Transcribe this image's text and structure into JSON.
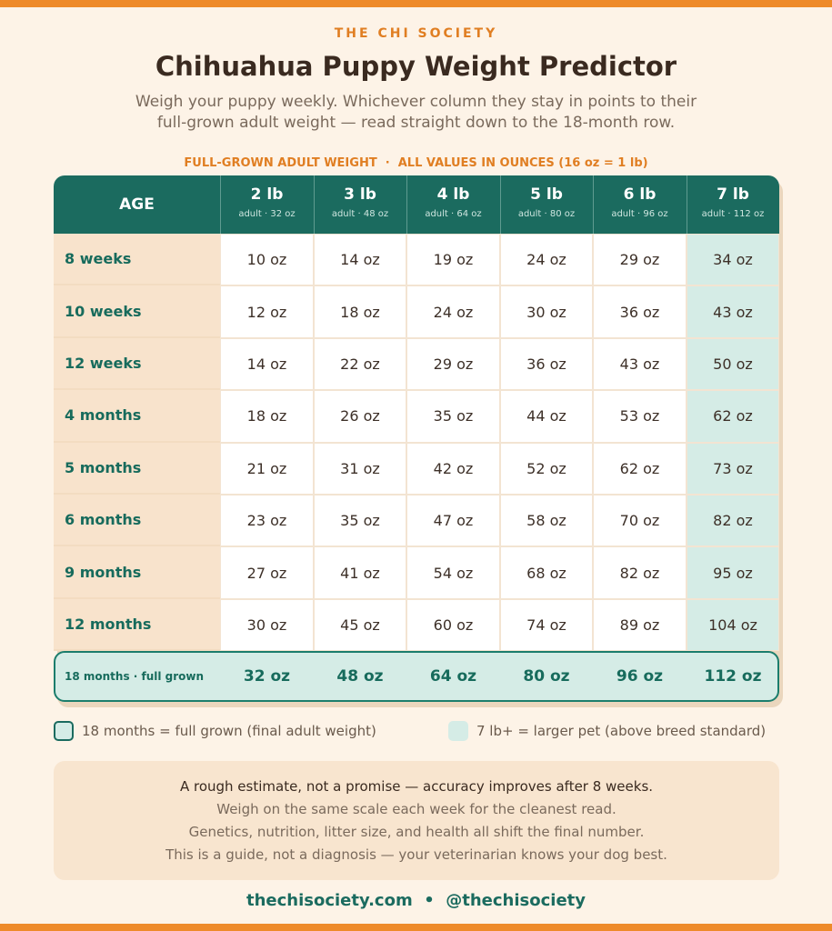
{
  "header": {
    "brand": "THE CHI SOCIETY",
    "title": "Chihuahua Puppy Weight Predictor",
    "subtitle": [
      "Weigh your puppy weekly. Whichever column they stay in points to their",
      "full-grown adult weight — read straight down to the 18-month row."
    ]
  },
  "table": {
    "caption": "FULL-GROWN ADULT WEIGHT  ·  ALL VALUES IN OUNCES (16 oz = 1 lb)",
    "age_header": "AGE",
    "columns": [
      {
        "label": "2 lb",
        "sub": "adult · 32 oz"
      },
      {
        "label": "3 lb",
        "sub": "adult · 48 oz"
      },
      {
        "label": "4 lb",
        "sub": "adult · 64 oz"
      },
      {
        "label": "5 lb",
        "sub": "adult · 80 oz"
      },
      {
        "label": "6 lb",
        "sub": "adult · 96 oz"
      },
      {
        "label": "7 lb",
        "sub": "adult · 112 oz"
      }
    ],
    "rows": [
      {
        "age": "8 weeks",
        "cells": [
          "10 oz",
          "14 oz",
          "19 oz",
          "24 oz",
          "29 oz",
          "34 oz"
        ]
      },
      {
        "age": "10 weeks",
        "cells": [
          "12 oz",
          "18 oz",
          "24 oz",
          "30 oz",
          "36 oz",
          "43 oz"
        ]
      },
      {
        "age": "12 weeks",
        "cells": [
          "14 oz",
          "22 oz",
          "29 oz",
          "36 oz",
          "43 oz",
          "50 oz"
        ]
      },
      {
        "age": "4 months",
        "cells": [
          "18 oz",
          "26 oz",
          "35 oz",
          "44 oz",
          "53 oz",
          "62 oz"
        ]
      },
      {
        "age": "5 months",
        "cells": [
          "21 oz",
          "31 oz",
          "42 oz",
          "52 oz",
          "62 oz",
          "73 oz"
        ]
      },
      {
        "age": "6 months",
        "cells": [
          "23 oz",
          "35 oz",
          "47 oz",
          "58 oz",
          "70 oz",
          "82 oz"
        ]
      },
      {
        "age": "9 months",
        "cells": [
          "27 oz",
          "41 oz",
          "54 oz",
          "68 oz",
          "82 oz",
          "95 oz"
        ]
      },
      {
        "age": "12 months",
        "cells": [
          "30 oz",
          "45 oz",
          "60 oz",
          "74 oz",
          "89 oz",
          "104 oz"
        ]
      }
    ],
    "final_row": {
      "age": "18 months · full grown",
      "cells": [
        "32 oz",
        "48 oz",
        "64 oz",
        "80 oz",
        "96 oz",
        "112 oz"
      ]
    }
  },
  "legend": [
    "18 months = full grown (final adult weight)",
    "7 lb+ = larger pet (above breed standard)"
  ],
  "notes": [
    "A rough estimate, not a promise — accuracy improves after 8 weeks.",
    "Weigh on the same scale each week for the cleanest read.",
    "Genetics, nutrition, litter size, and health all shift the final number.",
    "This is a guide, not a diagnosis — your veterinarian knows your dog best."
  ],
  "footer": "thechisociety.com  •  @thechisociety"
}
